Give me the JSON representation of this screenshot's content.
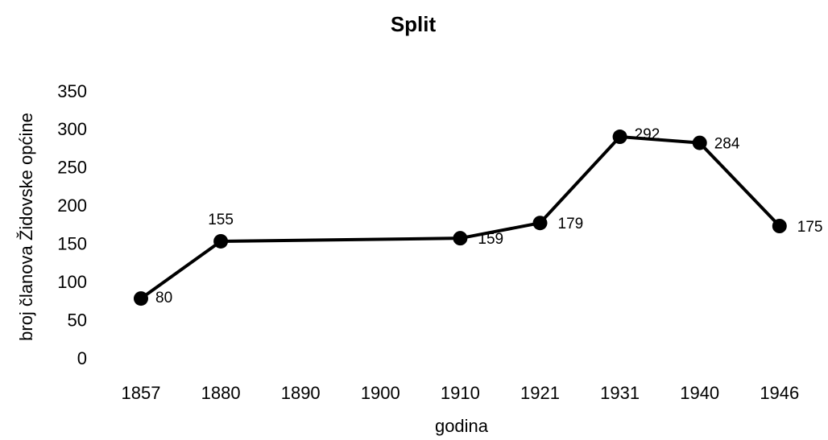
{
  "chart_data": {
    "type": "line",
    "title": "Split",
    "x_label": "godina",
    "y_label": "broj članova Židovske općine",
    "categories": [
      "1857",
      "1880",
      "1890",
      "1900",
      "1910",
      "1921",
      "1931",
      "1940",
      "1946"
    ],
    "x": [
      "1857",
      "1880",
      "1910",
      "1921",
      "1931",
      "1940",
      "1946"
    ],
    "values": [
      80,
      155,
      159,
      179,
      292,
      284,
      175
    ],
    "color": "#000000",
    "ylim": [
      0,
      350
    ],
    "yticks": [
      0,
      50,
      100,
      150,
      200,
      250,
      300,
      350
    ]
  }
}
